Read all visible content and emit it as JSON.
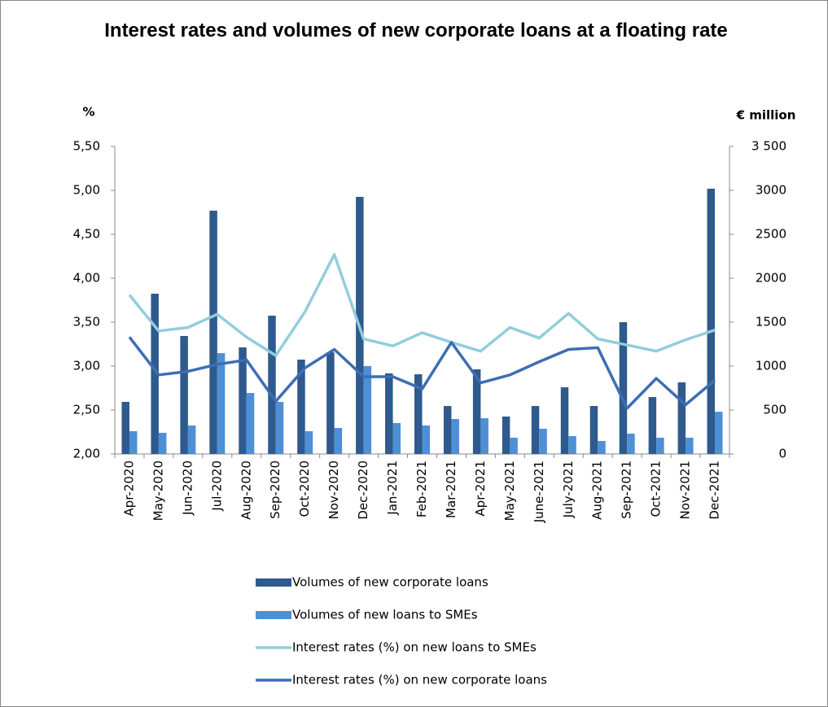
{
  "chart_data": {
    "type": "bar",
    "title": "Interest rates and volumes of new corporate loans at a floating rate",
    "y_label": "%",
    "y2_label": "€ million",
    "categories": [
      "Apr-2020",
      "May-2020",
      "Jun-2020",
      "Jul-2020",
      "Aug-2020",
      "Sep-2020",
      "Oct-2020",
      "Nov-2020",
      "Dec-2020",
      "Jan-2021",
      "Feb-2021",
      "Mar-2021",
      "Apr-2021",
      "May-2021",
      "June-2021",
      "July-2021",
      "Aug-2021",
      "Sep-2021",
      "Oct-2021",
      "Nov-2021",
      "Dec-2021"
    ],
    "series": [
      {
        "name": "Volumes of new corporate loans",
        "type": "bar",
        "axis": "y2",
        "color": "#2e5a8e",
        "values": [
          593,
          1824,
          1343,
          2769,
          1213,
          1574,
          1074,
          1157,
          2926,
          917,
          907,
          546,
          963,
          426,
          546,
          759,
          546,
          1500,
          648,
          815,
          3019
        ]
      },
      {
        "name": "Volumes of new loans to SMEs",
        "type": "bar",
        "axis": "y2",
        "color": "#4f8fd6",
        "values": [
          259,
          241,
          324,
          1148,
          694,
          593,
          259,
          296,
          1000,
          352,
          324,
          398,
          407,
          185,
          287,
          204,
          148,
          231,
          185,
          185,
          481
        ]
      },
      {
        "name": "Interest rates (%) on new loans to SMEs",
        "type": "line",
        "axis": "y",
        "color": "#92cddc",
        "values": [
          3.81,
          3.4,
          3.44,
          3.59,
          3.33,
          3.12,
          3.62,
          4.27,
          3.31,
          3.23,
          3.38,
          3.27,
          3.17,
          3.44,
          3.32,
          3.6,
          3.31,
          3.24,
          3.17,
          3.3,
          3.41
        ]
      },
      {
        "name": "Interest rates (%) on new corporate loans",
        "type": "line",
        "axis": "y",
        "color": "#3d6eb3",
        "values": [
          3.33,
          2.9,
          2.94,
          3.02,
          3.07,
          2.6,
          2.98,
          3.19,
          2.88,
          2.88,
          2.74,
          3.27,
          2.81,
          2.9,
          3.05,
          3.19,
          3.21,
          2.52,
          2.86,
          2.56,
          2.84
        ]
      }
    ],
    "ylim": [
      2,
      5.5
    ],
    "yticks": [
      {
        "value": 2,
        "label": "2,00"
      },
      {
        "value": 2.5,
        "label": "2,50"
      },
      {
        "value": 3,
        "label": "3,00"
      },
      {
        "value": 3.5,
        "label": "3,50"
      },
      {
        "value": 4,
        "label": "4,00"
      },
      {
        "value": 4.5,
        "label": "4,50"
      },
      {
        "value": 5,
        "label": "5,00"
      },
      {
        "value": 5.5,
        "label": "5,50"
      }
    ],
    "y2lim": [
      0,
      3500
    ],
    "y2ticks": [
      0,
      500,
      1000,
      1500,
      2000,
      2500,
      3000,
      {
        "value": 3500,
        "label": "3 500"
      }
    ],
    "grid": false
  }
}
